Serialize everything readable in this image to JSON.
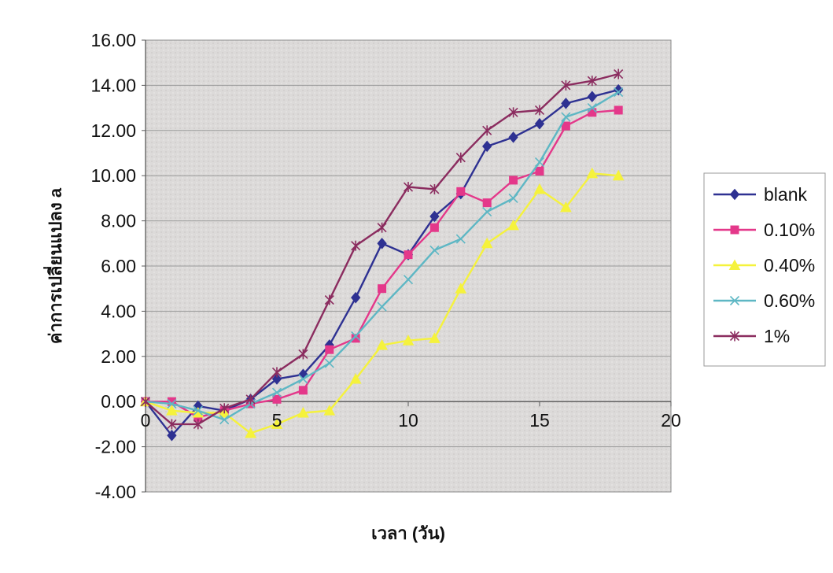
{
  "chart_data": {
    "type": "line",
    "title": "",
    "xlabel": "เวลา (วัน)",
    "ylabel": "ค่าการเปลี่ยนแปลง a",
    "xlim": [
      0,
      20
    ],
    "ylim": [
      -4,
      16
    ],
    "xticks": [
      0,
      5,
      10,
      15,
      20
    ],
    "xtick_labels": [
      "0",
      "5",
      "10",
      "15",
      "20"
    ],
    "yticks": [
      -4,
      -2,
      0,
      2,
      4,
      6,
      8,
      10,
      12,
      14,
      16
    ],
    "ytick_labels": [
      "-4.00",
      "-2.00",
      "0.00",
      "2.00",
      "4.00",
      "6.00",
      "8.00",
      "10.00",
      "12.00",
      "14.00",
      "16.00"
    ],
    "grid": true,
    "legend_position": "right",
    "x": [
      0,
      1,
      2,
      3,
      4,
      5,
      6,
      7,
      8,
      9,
      10,
      11,
      12,
      13,
      14,
      15,
      16,
      17,
      18
    ],
    "series": [
      {
        "name": "blank",
        "marker": "diamond",
        "color": "#2e3192",
        "values": [
          0.0,
          -1.5,
          -0.2,
          -0.4,
          0.1,
          1.0,
          1.2,
          2.5,
          4.6,
          7.0,
          6.5,
          8.2,
          9.2,
          11.3,
          11.7,
          12.3,
          13.2,
          13.5,
          13.8
        ]
      },
      {
        "name": "0.10%",
        "marker": "square",
        "color": "#e4388a",
        "values": [
          0.0,
          0.0,
          -0.7,
          -0.4,
          -0.1,
          0.1,
          0.5,
          2.3,
          2.8,
          5.0,
          6.5,
          7.7,
          9.3,
          8.8,
          9.8,
          10.2,
          12.2,
          12.8,
          12.9
        ]
      },
      {
        "name": "0.40%",
        "marker": "triangle",
        "color": "#f5f23c",
        "values": [
          0.0,
          -0.4,
          -0.5,
          -0.5,
          -1.4,
          -1.0,
          -0.5,
          -0.4,
          1.0,
          2.5,
          2.7,
          2.8,
          5.0,
          7.0,
          7.8,
          9.4,
          8.6,
          10.1,
          10.0
        ]
      },
      {
        "name": "0.60%",
        "marker": "x",
        "color": "#5eb7c4",
        "values": [
          0.0,
          -0.1,
          -0.4,
          -0.8,
          -0.1,
          0.4,
          1.0,
          1.7,
          2.9,
          4.2,
          5.4,
          6.7,
          7.2,
          8.4,
          9.0,
          10.6,
          12.6,
          13.0,
          13.7
        ]
      },
      {
        "name": "1%",
        "marker": "star",
        "color": "#8b2c5f",
        "values": [
          0.0,
          -1.0,
          -1.0,
          -0.3,
          0.1,
          1.3,
          2.1,
          4.5,
          6.9,
          7.7,
          9.5,
          9.4,
          10.8,
          12.0,
          12.8,
          12.9,
          14.0,
          14.2,
          14.5
        ]
      }
    ]
  }
}
